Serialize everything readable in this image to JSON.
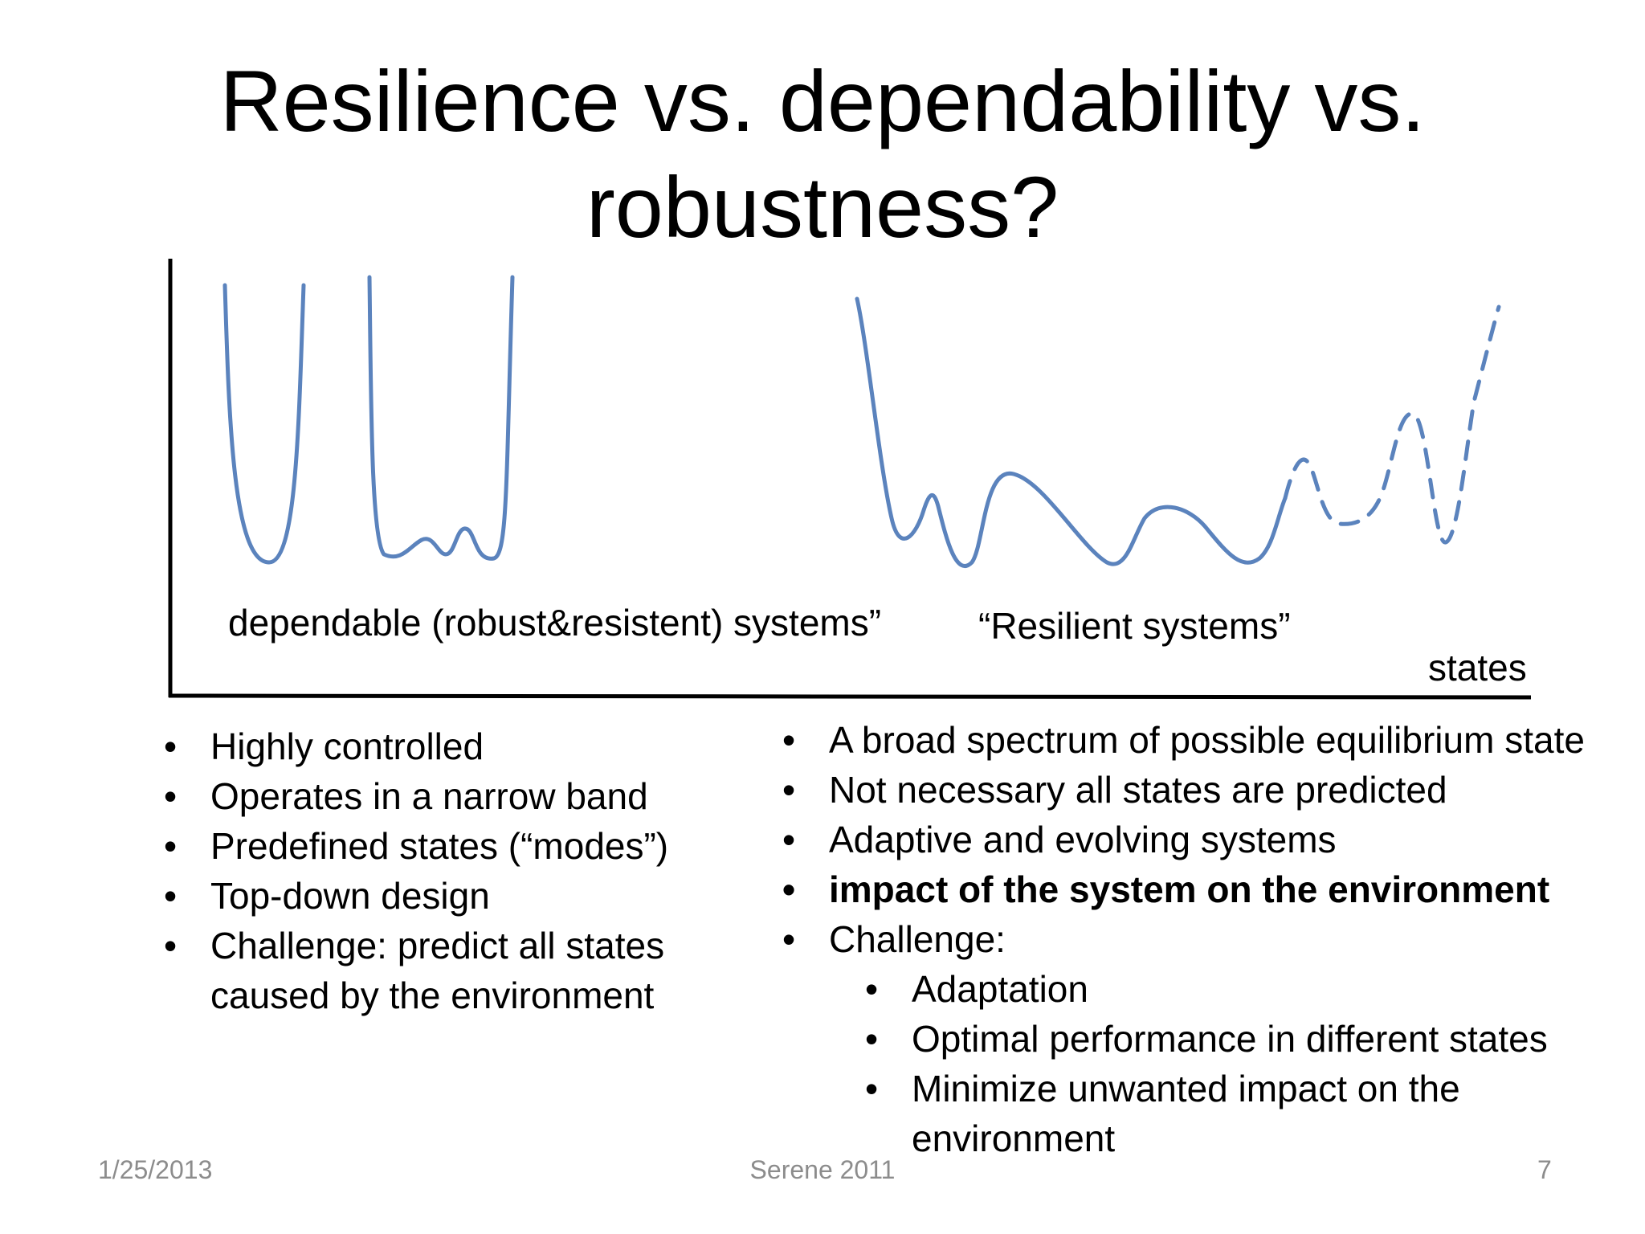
{
  "title": {
    "line1": "Resilience vs. dependability vs.",
    "line2": "robustness?"
  },
  "diagram": {
    "label_dependable": "dependable (robust&resistent) systems”",
    "label_resilient": "“Resilient systems”",
    "axis_label": "states",
    "curve_color": "#5b83bd"
  },
  "left_bullets": [
    "Highly controlled",
    "Operates in a narrow band",
    "Predefined states (“modes”)",
    "Top-down design",
    "Challenge: predict all states caused by the environment"
  ],
  "right_bullets": {
    "items": [
      "A broad spectrum of possible equilibrium state",
      "Not necessary all states are predicted",
      "Adaptive and evolving systems",
      "impact of the system on the environment",
      "Challenge:"
    ],
    "sub_items": [
      "Adaptation",
      "Optimal performance in different states",
      "Minimize unwanted impact on the environment"
    ]
  },
  "footer": {
    "date": "1/25/2013",
    "center": "Serene 2011",
    "page": "7"
  }
}
